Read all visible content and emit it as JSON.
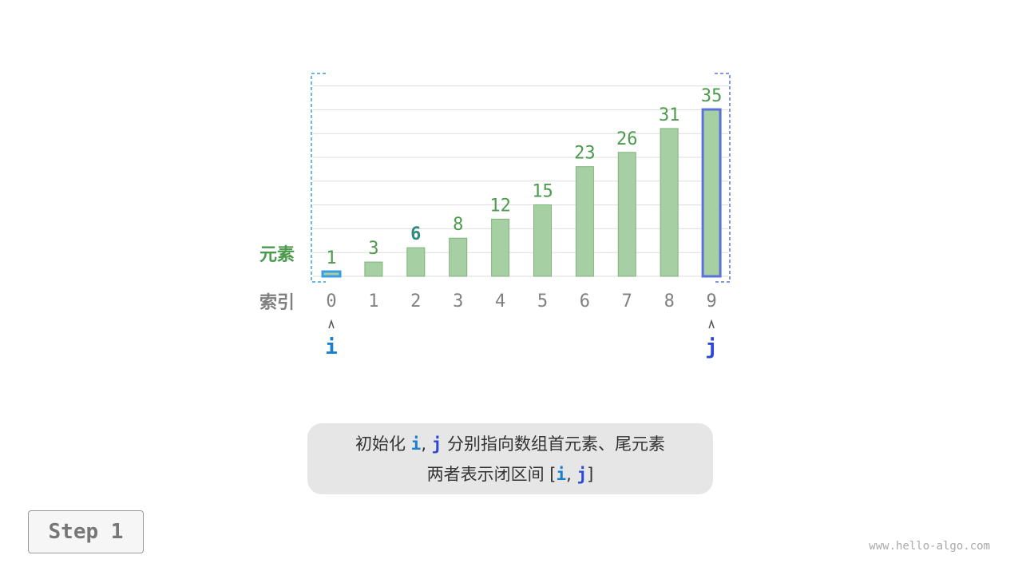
{
  "array": {
    "values": [
      1,
      3,
      6,
      8,
      12,
      15,
      23,
      26,
      31,
      35
    ],
    "indices": [
      "0",
      "1",
      "2",
      "3",
      "4",
      "5",
      "6",
      "7",
      "8",
      "9"
    ],
    "highlighted_value_index": 2,
    "element_label": "元素",
    "index_label": "索引"
  },
  "pointers": {
    "i": {
      "label": "i",
      "index": 0,
      "color": "#1a7fcf"
    },
    "j": {
      "label": "j",
      "index": 9,
      "color": "#2b47d4"
    }
  },
  "colors": {
    "bar": "#a6cfa3",
    "bar_border": "#7fb27b",
    "value_text": "#4c9a4c",
    "highlight_value": "#2e8b7e",
    "index_text": "#808080",
    "interval_i": "#3a9ee0",
    "interval_j": "#5b73d9"
  },
  "caption": {
    "line1_pre": "初始化 ",
    "i": "i",
    "comma": ", ",
    "j": "j",
    "line1_post": " 分别指向数组首元素、尾元素",
    "line2_pre": "两者表示闭区间 [",
    "line2_i": "i",
    "line2_comma": ", ",
    "line2_j": "j",
    "line2_post": "]"
  },
  "step_label": "Step 1",
  "watermark": "www.hello-algo.com"
}
